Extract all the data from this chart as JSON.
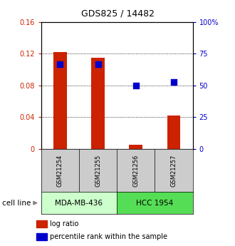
{
  "title": "GDS825 / 14482",
  "samples": [
    "GSM21254",
    "GSM21255",
    "GSM21256",
    "GSM21257"
  ],
  "log_ratio": [
    0.122,
    0.115,
    0.005,
    0.042
  ],
  "percentile_rank_pct": [
    67,
    67,
    50,
    53
  ],
  "ylim_left": [
    0,
    0.16
  ],
  "ylim_right": [
    0,
    100
  ],
  "yticks_left": [
    0,
    0.04,
    0.08,
    0.12,
    0.16
  ],
  "yticks_right": [
    0,
    25,
    50,
    75,
    100
  ],
  "ytick_labels_left": [
    "0",
    "0.04",
    "0.08",
    "0.12",
    "0.16"
  ],
  "ytick_labels_right": [
    "0",
    "25",
    "50",
    "75",
    "100%"
  ],
  "cell_lines": [
    {
      "label": "MDA-MB-436",
      "samples": [
        0,
        1
      ],
      "color": "#ccffcc"
    },
    {
      "label": "HCC 1954",
      "samples": [
        2,
        3
      ],
      "color": "#55dd55"
    }
  ],
  "bar_color": "#cc2200",
  "dot_color": "#0000cc",
  "bar_width": 0.35,
  "dot_size": 30,
  "left_tick_color": "#cc2200",
  "right_tick_color": "#0000cc",
  "label_box_color": "#cccccc",
  "cell_line_label": "cell line",
  "legend_log_ratio": "log ratio",
  "legend_percentile": "percentile rank within the sample",
  "title_fontsize": 9,
  "tick_fontsize": 7,
  "sample_fontsize": 6,
  "cell_line_fontsize": 7.5,
  "legend_fontsize": 7
}
